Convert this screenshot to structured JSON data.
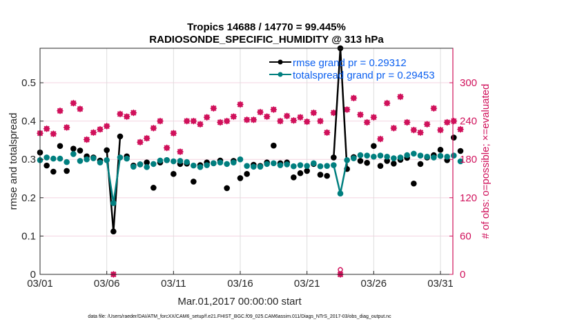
{
  "chart_data": {
    "type": "line",
    "title": [
      "Tropics 14688 / 14770 = 99.445%",
      "RADIOSONDE_SPECIFIC_HUMIDITY @ 313 hPa"
    ],
    "xlabel": "Mar.01,2017 00:00:00 start",
    "ylabel": "rmse and totalspread",
    "ylabel_right": "# of obs: o=possible; ×=evaluated",
    "footnote": "data file: /Users/raeder/DAI/ATM_forcXX/CAM6_setup/f.e21.FHIST_BGC.f09_025.CAM6assim.011/Diags_NTrS_2017-03/obs_diag_output.nc",
    "x_unit": "days since Mar.01,2017 00Z",
    "xlim": [
      0,
      31
    ],
    "ylim": [
      0,
      0.59
    ],
    "ylim_right": [
      0,
      354
    ],
    "x_ticks": [
      0,
      5,
      10,
      15,
      20,
      25,
      30
    ],
    "x_tick_labels": [
      "03/01",
      "03/06",
      "03/11",
      "03/16",
      "03/21",
      "03/26",
      "03/31"
    ],
    "y_ticks": [
      0,
      0.1,
      0.2,
      0.3,
      0.4,
      0.5
    ],
    "y_tick_labels": [
      "0",
      "0.1",
      "0.2",
      "0.3",
      "0.4",
      "0.5"
    ],
    "y_ticks_right": [
      0,
      60,
      120,
      180,
      240,
      300
    ],
    "y_tick_labels_right": [
      "0",
      "60",
      "120",
      "180",
      "240",
      "300"
    ],
    "grid": true,
    "legend_position": "top-right",
    "colors": {
      "rmse": "#000000",
      "totalspread": "#007f7f",
      "obs": "#d0115b",
      "legend_text": "#0a5ff0",
      "grid": "#f3d3e0"
    },
    "series": [
      {
        "name": "rmse grand pr = 0.29312",
        "axis": "left",
        "values": [
          0.318,
          0.284,
          0.268,
          0.335,
          0.27,
          0.328,
          0.323,
          0.308,
          0.305,
          0.297,
          0.324,
          0.112,
          0.36,
          0.308,
          0.284,
          0.287,
          0.292,
          0.226,
          0.292,
          0.298,
          0.262,
          0.288,
          0.289,
          0.242,
          0.285,
          0.292,
          0.29,
          0.297,
          0.225,
          0.296,
          0.251,
          0.262,
          0.286,
          0.283,
          0.292,
          0.336,
          0.29,
          0.292,
          0.253,
          0.264,
          0.27,
          0.288,
          0.26,
          0.257,
          0.305,
          0.59,
          0.275,
          0.306,
          0.296,
          0.291,
          0.335,
          0.283,
          0.296,
          0.289,
          0.299,
          0.304,
          0.237,
          0.288,
          0.305,
          0.311,
          0.325,
          0.298,
          0.357,
          0.322
        ],
        "x_start": 0,
        "x_step": 0.5
      },
      {
        "name": "totalspread grand pr = 0.29453",
        "axis": "left",
        "values": [
          0.298,
          0.305,
          0.302,
          0.302,
          0.293,
          0.314,
          0.296,
          0.3,
          0.303,
          0.292,
          0.298,
          0.186,
          0.305,
          0.302,
          0.281,
          0.287,
          0.28,
          0.288,
          0.297,
          0.298,
          0.295,
          0.296,
          0.293,
          0.284,
          0.28,
          0.285,
          0.29,
          0.292,
          0.288,
          0.292,
          0.3,
          0.283,
          0.281,
          0.281,
          0.288,
          0.29,
          0.285,
          0.287,
          0.282,
          0.285,
          0.283,
          0.29,
          0.282,
          0.283,
          0.285,
          0.211,
          0.298,
          0.303,
          0.311,
          0.31,
          0.307,
          0.31,
          0.307,
          0.303,
          0.305,
          0.311,
          0.315,
          0.31,
          0.307,
          0.305,
          0.309,
          0.307,
          0.31,
          0.295
        ],
        "x_start": 0,
        "x_step": 0.5
      },
      {
        "name": "obs possible",
        "axis": "right",
        "marker": "o",
        "values": [
          221,
          228,
          220,
          256,
          230,
          268,
          259,
          211,
          222,
          227,
          232,
          0,
          251,
          247,
          253,
          207,
          213,
          229,
          240,
          198,
          221,
          192,
          240,
          240,
          235,
          246,
          260,
          238,
          240,
          247,
          266,
          242,
          242,
          254,
          247,
          258,
          240,
          248,
          241,
          246,
          239,
          253,
          240,
          222,
          253,
          4,
          258,
          276,
          250,
          238,
          246,
          212,
          268,
          229,
          278,
          238,
          226,
          222,
          235,
          260,
          226,
          238,
          240,
          227
        ],
        "x_start": 0,
        "x_step": 0.5
      },
      {
        "name": "obs evaluated",
        "axis": "right",
        "marker": "x",
        "values": [
          221,
          228,
          220,
          256,
          230,
          268,
          259,
          211,
          222,
          227,
          232,
          0,
          251,
          247,
          253,
          207,
          213,
          229,
          240,
          198,
          221,
          192,
          240,
          240,
          235,
          246,
          260,
          238,
          240,
          247,
          266,
          242,
          242,
          254,
          247,
          258,
          240,
          248,
          241,
          246,
          239,
          253,
          240,
          222,
          253,
          0,
          258,
          276,
          250,
          238,
          246,
          212,
          268,
          229,
          278,
          238,
          226,
          222,
          235,
          260,
          226,
          238,
          240,
          227
        ],
        "x_start": 0,
        "x_step": 0.5
      }
    ]
  }
}
